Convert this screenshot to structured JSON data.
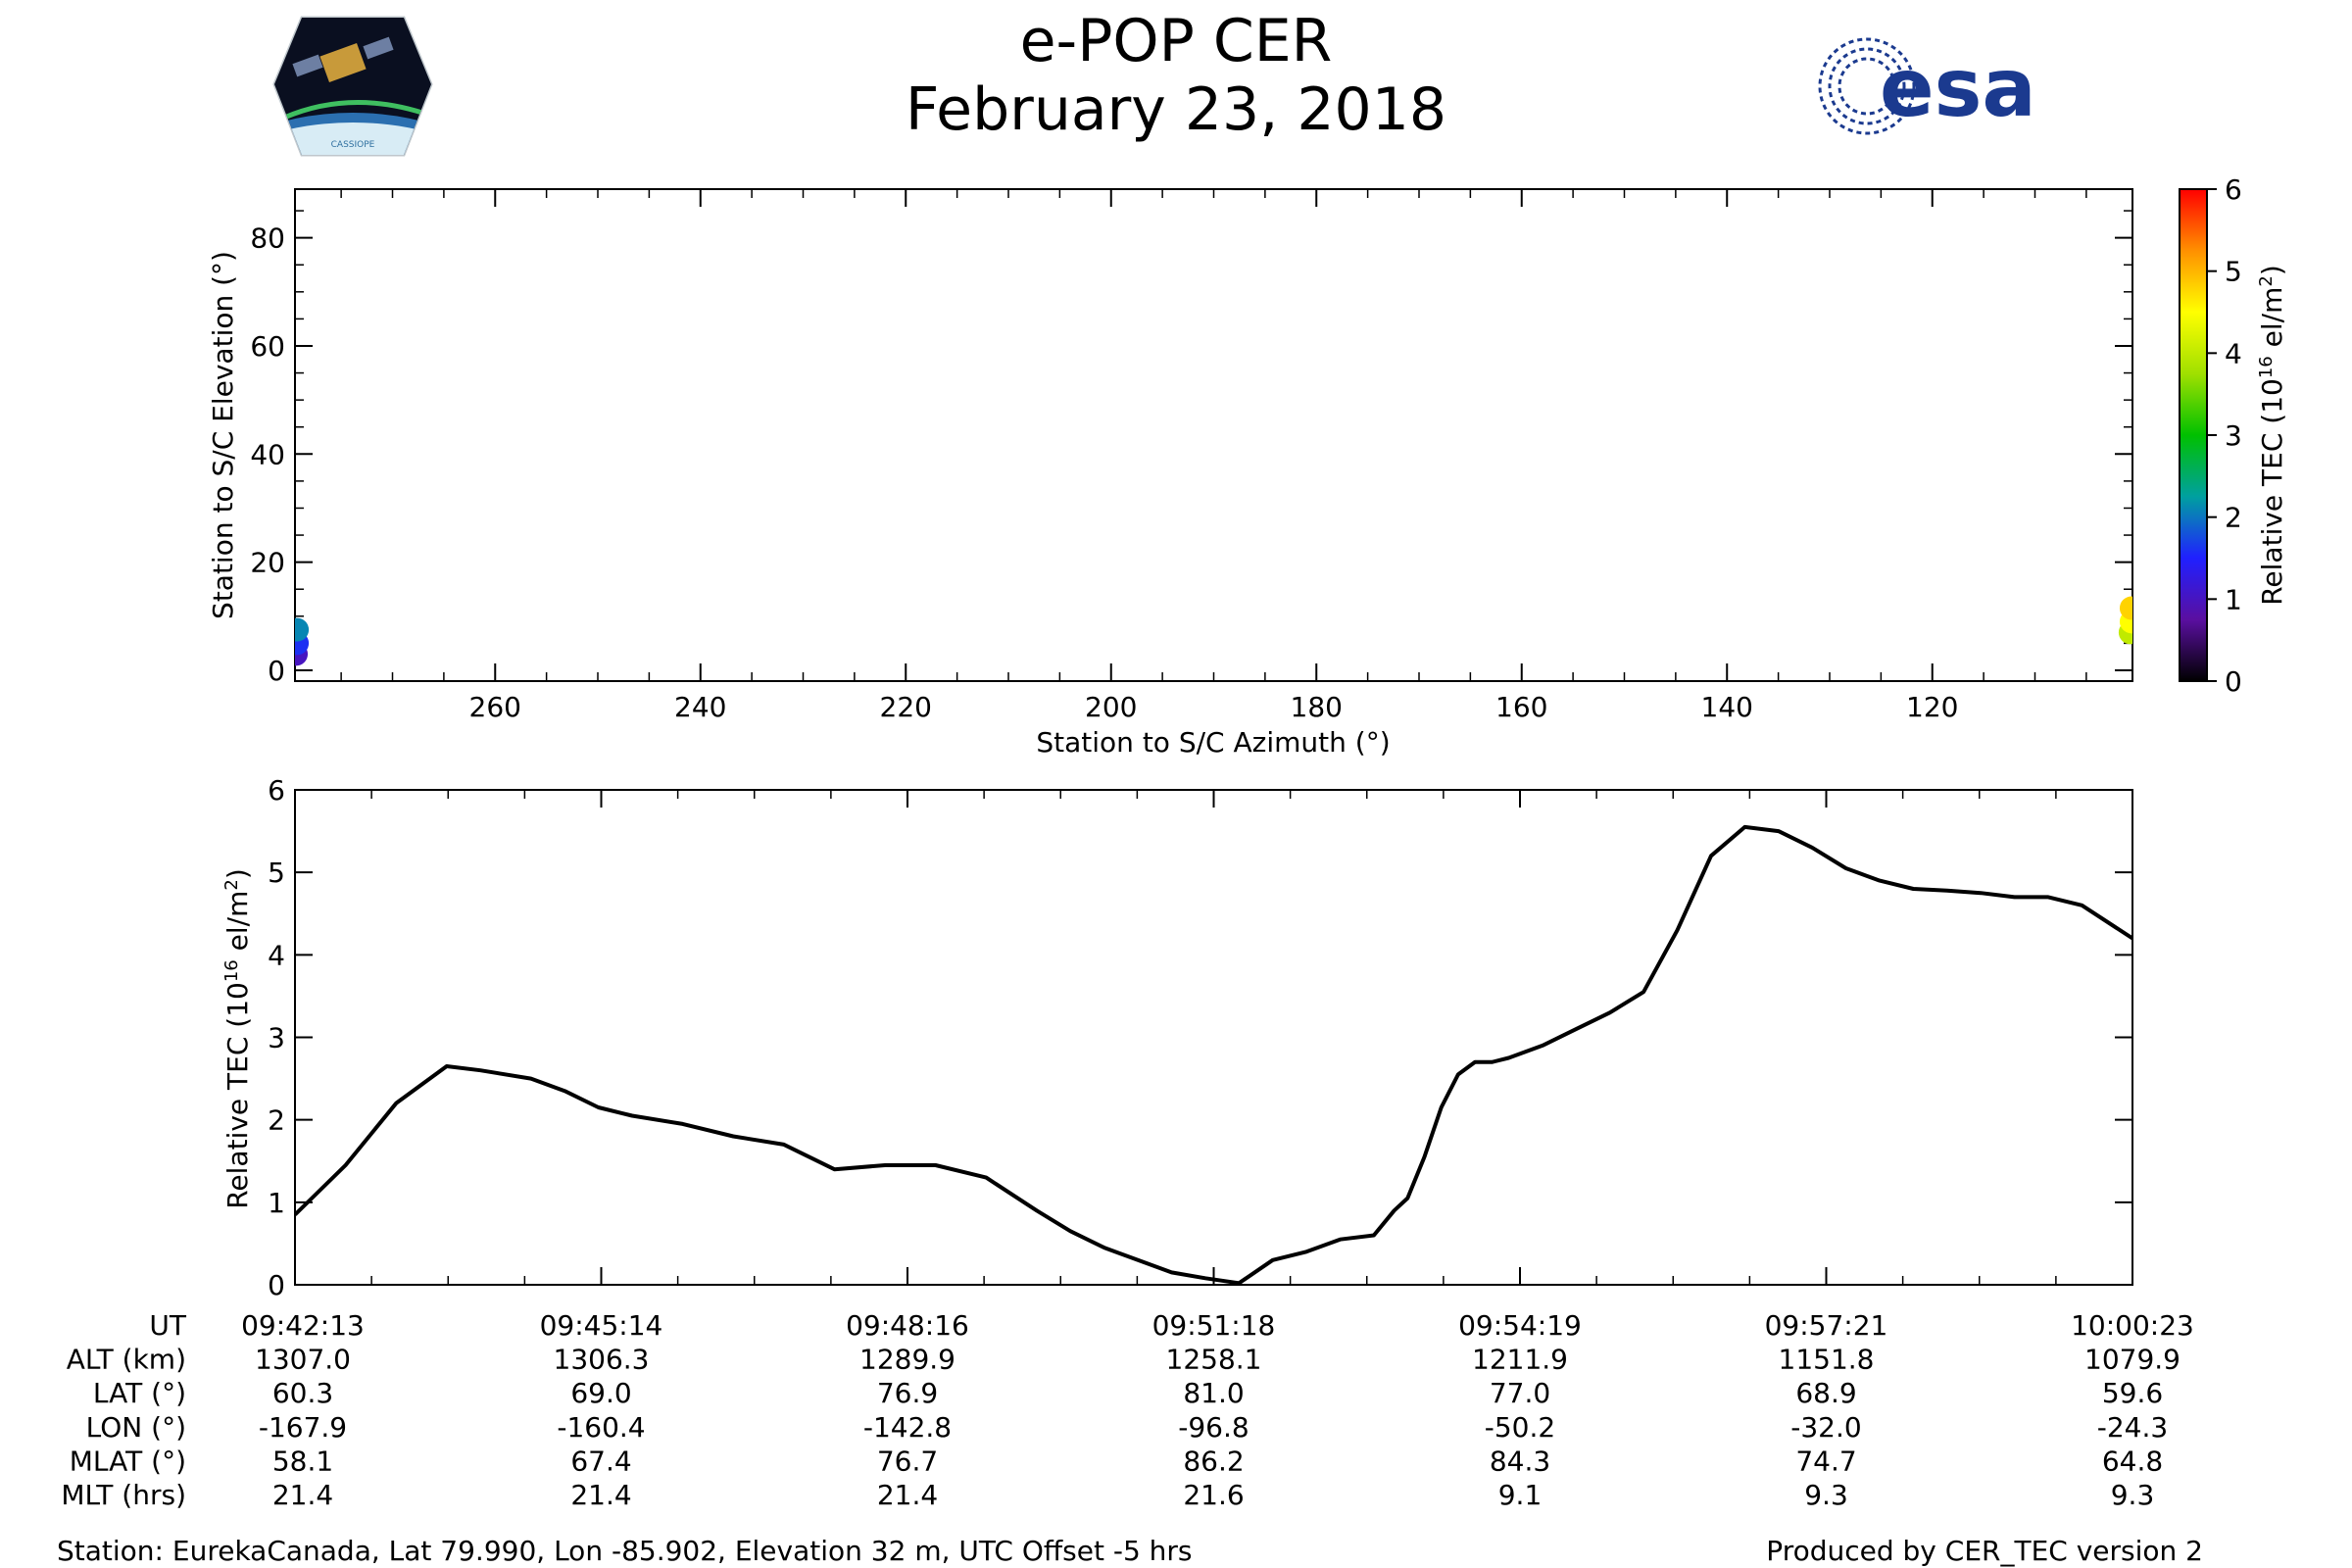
{
  "header": {
    "title": "e-POP CER",
    "subtitle": "February 23, 2018",
    "logo_left_text": "CASSIOPE",
    "logo_right_text": "esa"
  },
  "colors": {
    "line": "#000000",
    "esa_blue": "#1b3a8f",
    "colormap_stops": [
      "#000000",
      "#5a0fa0",
      "#2020ff",
      "#00a0a0",
      "#00c000",
      "#a0e000",
      "#ffff00",
      "#ff9000",
      "#ff0000"
    ]
  },
  "chart_data": [
    {
      "id": "sky_track",
      "type": "scatter",
      "xlabel": "Station to S/C Azimuth (°)",
      "ylabel": "Station to S/C Elevation (°)",
      "xlim": [
        279.5,
        100.5
      ],
      "ylim": [
        -2,
        89
      ],
      "x_ticks": [
        260,
        240,
        220,
        200,
        180,
        160,
        140,
        120
      ],
      "y_ticks": [
        0,
        20,
        40,
        60,
        80
      ],
      "points": [
        {
          "az": 279.4,
          "el": 3.0,
          "tec": 1.0
        },
        {
          "az": 279.3,
          "el": 5.0,
          "tec": 1.6
        },
        {
          "az": 279.3,
          "el": 7.5,
          "tec": 2.1
        },
        {
          "az": 100.7,
          "el": 7.0,
          "tec": 4.0
        },
        {
          "az": 100.6,
          "el": 9.0,
          "tec": 4.5
        },
        {
          "az": 100.6,
          "el": 11.5,
          "tec": 4.8
        }
      ],
      "colorbar": {
        "label": "Relative TEC (10^16 el/m^2)",
        "label_main": "Relative TEC (10",
        "label_exp": "16",
        "label_unit": " el/m",
        "label_unit_exp": "2",
        "label_close": ")",
        "range": [
          0,
          6
        ],
        "ticks": [
          0,
          1,
          2,
          3,
          4,
          5,
          6
        ]
      }
    },
    {
      "id": "tec_time_series",
      "type": "line",
      "ylabel": "Relative TEC (10^16 el/m^2)",
      "ylabel_main": "Relative TEC (10",
      "ylabel_exp": "16",
      "ylabel_unit": " el/m",
      "ylabel_unit_exp": "2",
      "ylabel_close": ")",
      "ylim": [
        0,
        6
      ],
      "y_ticks": [
        0,
        1,
        2,
        3,
        4,
        5,
        6
      ],
      "x_unit": "seconds after 09:42:13 UT",
      "xlim": [
        0,
        1090
      ],
      "x": [
        0,
        30,
        60,
        90,
        110,
        140,
        160,
        180,
        200,
        230,
        260,
        290,
        320,
        350,
        380,
        410,
        440,
        460,
        480,
        500,
        520,
        540,
        560,
        580,
        600,
        620,
        640,
        652,
        660,
        670,
        680,
        690,
        700,
        710,
        720,
        740,
        760,
        780,
        800,
        820,
        840,
        860,
        880,
        900,
        920,
        940,
        960,
        980,
        1000,
        1020,
        1040,
        1060,
        1090
      ],
      "values": [
        0.85,
        1.45,
        2.2,
        2.65,
        2.6,
        2.5,
        2.35,
        2.15,
        2.05,
        1.95,
        1.8,
        1.7,
        1.4,
        1.45,
        1.45,
        1.3,
        0.9,
        0.65,
        0.45,
        0.3,
        0.15,
        0.08,
        0.02,
        0.3,
        0.4,
        0.55,
        0.6,
        0.9,
        1.05,
        1.55,
        2.15,
        2.55,
        2.7,
        2.7,
        2.75,
        2.9,
        3.1,
        3.3,
        3.55,
        4.3,
        5.2,
        5.55,
        5.5,
        5.3,
        5.05,
        4.9,
        4.8,
        4.78,
        4.75,
        4.7,
        4.7,
        4.6,
        4.2
      ]
    }
  ],
  "ephemeris": {
    "row_labels": [
      "UT",
      "ALT (km)",
      "LAT (°)",
      "LON (°)",
      "MLAT (°)",
      "MLT (hrs)"
    ],
    "columns": [
      {
        "ut": "09:42:13",
        "alt": "1307.0",
        "lat": "60.3",
        "lon": "-167.9",
        "mlat": "58.1",
        "mlt": "21.4"
      },
      {
        "ut": "09:45:14",
        "alt": "1306.3",
        "lat": "69.0",
        "lon": "-160.4",
        "mlat": "67.4",
        "mlt": "21.4"
      },
      {
        "ut": "09:48:16",
        "alt": "1289.9",
        "lat": "76.9",
        "lon": "-142.8",
        "mlat": "76.7",
        "mlt": "21.4"
      },
      {
        "ut": "09:51:18",
        "alt": "1258.1",
        "lat": "81.0",
        "lon": "-96.8",
        "mlat": "86.2",
        "mlt": "21.6"
      },
      {
        "ut": "09:54:19",
        "alt": "1211.9",
        "lat": "77.0",
        "lon": "-50.2",
        "mlat": "84.3",
        "mlt": "9.1"
      },
      {
        "ut": "09:57:21",
        "alt": "1151.8",
        "lat": "68.9",
        "lon": "-32.0",
        "mlat": "74.7",
        "mlt": "9.3"
      },
      {
        "ut": "10:00:23",
        "alt": "1079.9",
        "lat": "59.6",
        "lon": "-24.3",
        "mlat": "64.8",
        "mlt": "9.3"
      }
    ]
  },
  "footer": {
    "station": "Station: EurekaCanada, Lat 79.990, Lon -85.902, Elevation 32 m, UTC Offset -5 hrs",
    "producer": "Produced by CER_TEC version 2"
  }
}
